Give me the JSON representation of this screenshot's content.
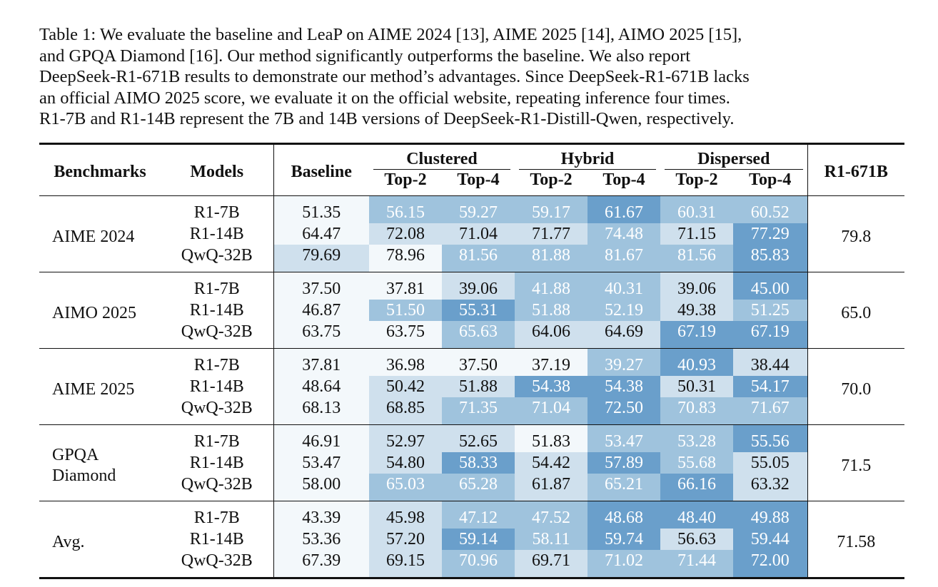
{
  "caption": {
    "lines": [
      "Table 1: We evaluate the baseline and LeaP on AIME 2024 [13], AIME 2025 [14], AIMO 2025 [15],",
      "and GPQA Diamond [16].  Our method significantly outperforms the baseline.  We also report",
      "DeepSeek-R1-671B results to demonstrate our method’s advantages. Since DeepSeek-R1-671B lacks",
      "an official AIMO 2025 score, we evaluate it on the official website, repeating inference four times.",
      "R1-7B and R1-14B represent the 7B and 14B versions of DeepSeek-R1-Distill-Qwen, respectively."
    ]
  },
  "headers": {
    "benchmarks": "Benchmarks",
    "models": "Models",
    "baseline": "Baseline",
    "groups": [
      "Clustered",
      "Hybrid",
      "Dispersed"
    ],
    "subheaders": [
      "Top-2",
      "Top-4",
      "Top-2",
      "Top-4",
      "Top-2",
      "Top-4"
    ],
    "r1_671b": "R1-671B"
  },
  "palette": {
    "shade_0": "#f3f8fb",
    "shade_1": "#cfe0ed",
    "shade_2": "#9fc3dd",
    "shade_3": "#6a9fcb"
  },
  "groups": [
    {
      "benchmark_lines": [
        "AIME 2024"
      ],
      "r1_671b": "79.8",
      "rows": [
        {
          "model": "R1-7B",
          "baseline": {
            "v": "51.35",
            "s": 0
          },
          "cells": [
            {
              "v": "56.15",
              "s": 2
            },
            {
              "v": "59.27",
              "s": 2
            },
            {
              "v": "59.17",
              "s": 2
            },
            {
              "v": "61.67",
              "s": 3
            },
            {
              "v": "60.31",
              "s": 2
            },
            {
              "v": "60.52",
              "s": 2
            }
          ]
        },
        {
          "model": "R1-14B",
          "baseline": {
            "v": "64.47",
            "s": 0
          },
          "cells": [
            {
              "v": "72.08",
              "s": 1
            },
            {
              "v": "71.04",
              "s": 1
            },
            {
              "v": "71.77",
              "s": 1
            },
            {
              "v": "74.48",
              "s": 2
            },
            {
              "v": "71.15",
              "s": 1
            },
            {
              "v": "77.29",
              "s": 3
            }
          ]
        },
        {
          "model": "QwQ-32B",
          "baseline": {
            "v": "79.69",
            "s": 1
          },
          "cells": [
            {
              "v": "78.96",
              "s": 0
            },
            {
              "v": "81.56",
              "s": 2
            },
            {
              "v": "81.88",
              "s": 2
            },
            {
              "v": "81.67",
              "s": 2
            },
            {
              "v": "81.56",
              "s": 2
            },
            {
              "v": "85.83",
              "s": 3
            }
          ]
        }
      ]
    },
    {
      "benchmark_lines": [
        "AIMO 2025"
      ],
      "r1_671b": "65.0",
      "rows": [
        {
          "model": "R1-7B",
          "baseline": {
            "v": "37.50",
            "s": 0
          },
          "cells": [
            {
              "v": "37.81",
              "s": 0
            },
            {
              "v": "39.06",
              "s": 1
            },
            {
              "v": "41.88",
              "s": 2
            },
            {
              "v": "40.31",
              "s": 2
            },
            {
              "v": "39.06",
              "s": 1
            },
            {
              "v": "45.00",
              "s": 3
            }
          ]
        },
        {
          "model": "R1-14B",
          "baseline": {
            "v": "46.87",
            "s": 0
          },
          "cells": [
            {
              "v": "51.50",
              "s": 2
            },
            {
              "v": "55.31",
              "s": 3
            },
            {
              "v": "51.88",
              "s": 2
            },
            {
              "v": "52.19",
              "s": 2
            },
            {
              "v": "49.38",
              "s": 1
            },
            {
              "v": "51.25",
              "s": 2
            }
          ]
        },
        {
          "model": "QwQ-32B",
          "baseline": {
            "v": "63.75",
            "s": 0
          },
          "cells": [
            {
              "v": "63.75",
              "s": 0
            },
            {
              "v": "65.63",
              "s": 2
            },
            {
              "v": "64.06",
              "s": 1
            },
            {
              "v": "64.69",
              "s": 1
            },
            {
              "v": "67.19",
              "s": 3
            },
            {
              "v": "67.19",
              "s": 3
            }
          ]
        }
      ]
    },
    {
      "benchmark_lines": [
        "AIME 2025"
      ],
      "r1_671b": "70.0",
      "rows": [
        {
          "model": "R1-7B",
          "baseline": {
            "v": "37.81",
            "s": 0
          },
          "cells": [
            {
              "v": "36.98",
              "s": 0
            },
            {
              "v": "37.50",
              "s": 0
            },
            {
              "v": "37.19",
              "s": 0
            },
            {
              "v": "39.27",
              "s": 2
            },
            {
              "v": "40.93",
              "s": 3
            },
            {
              "v": "38.44",
              "s": 1
            }
          ]
        },
        {
          "model": "R1-14B",
          "baseline": {
            "v": "48.64",
            "s": 0
          },
          "cells": [
            {
              "v": "50.42",
              "s": 1
            },
            {
              "v": "51.88",
              "s": 1
            },
            {
              "v": "54.38",
              "s": 3
            },
            {
              "v": "54.38",
              "s": 3
            },
            {
              "v": "50.31",
              "s": 1
            },
            {
              "v": "54.17",
              "s": 3
            }
          ]
        },
        {
          "model": "QwQ-32B",
          "baseline": {
            "v": "68.13",
            "s": 0
          },
          "cells": [
            {
              "v": "68.85",
              "s": 1
            },
            {
              "v": "71.35",
              "s": 2
            },
            {
              "v": "71.04",
              "s": 2
            },
            {
              "v": "72.50",
              "s": 3
            },
            {
              "v": "70.83",
              "s": 2
            },
            {
              "v": "71.67",
              "s": 2
            }
          ]
        }
      ]
    },
    {
      "benchmark_lines": [
        "GPQA",
        "Diamond"
      ],
      "r1_671b": "71.5",
      "rows": [
        {
          "model": "R1-7B",
          "baseline": {
            "v": "46.91",
            "s": 0
          },
          "cells": [
            {
              "v": "52.97",
              "s": 1
            },
            {
              "v": "52.65",
              "s": 1
            },
            {
              "v": "51.83",
              "s": 0
            },
            {
              "v": "53.47",
              "s": 2
            },
            {
              "v": "53.28",
              "s": 2
            },
            {
              "v": "55.56",
              "s": 3
            }
          ]
        },
        {
          "model": "R1-14B",
          "baseline": {
            "v": "53.47",
            "s": 0
          },
          "cells": [
            {
              "v": "54.80",
              "s": 1
            },
            {
              "v": "58.33",
              "s": 3
            },
            {
              "v": "54.42",
              "s": 1
            },
            {
              "v": "57.89",
              "s": 3
            },
            {
              "v": "55.68",
              "s": 2
            },
            {
              "v": "55.05",
              "s": 1
            }
          ]
        },
        {
          "model": "QwQ-32B",
          "baseline": {
            "v": "58.00",
            "s": 0
          },
          "cells": [
            {
              "v": "65.03",
              "s": 2
            },
            {
              "v": "65.28",
              "s": 2
            },
            {
              "v": "61.87",
              "s": 1
            },
            {
              "v": "65.21",
              "s": 2
            },
            {
              "v": "66.16",
              "s": 3
            },
            {
              "v": "63.32",
              "s": 1
            }
          ]
        }
      ]
    },
    {
      "benchmark_lines": [
        "Avg."
      ],
      "r1_671b": "71.58",
      "rows": [
        {
          "model": "R1-7B",
          "baseline": {
            "v": "43.39",
            "s": 0
          },
          "cells": [
            {
              "v": "45.98",
              "s": 1
            },
            {
              "v": "47.12",
              "s": 2
            },
            {
              "v": "47.52",
              "s": 2
            },
            {
              "v": "48.68",
              "s": 3
            },
            {
              "v": "48.40",
              "s": 3
            },
            {
              "v": "49.88",
              "s": 3
            }
          ]
        },
        {
          "model": "R1-14B",
          "baseline": {
            "v": "53.36",
            "s": 0
          },
          "cells": [
            {
              "v": "57.20",
              "s": 1
            },
            {
              "v": "59.14",
              "s": 3
            },
            {
              "v": "58.11",
              "s": 2
            },
            {
              "v": "59.74",
              "s": 3
            },
            {
              "v": "56.63",
              "s": 1
            },
            {
              "v": "59.44",
              "s": 3
            }
          ]
        },
        {
          "model": "QwQ-32B",
          "baseline": {
            "v": "67.39",
            "s": 0
          },
          "cells": [
            {
              "v": "69.15",
              "s": 1
            },
            {
              "v": "70.96",
              "s": 2
            },
            {
              "v": "69.71",
              "s": 1
            },
            {
              "v": "71.02",
              "s": 2
            },
            {
              "v": "71.44",
              "s": 2
            },
            {
              "v": "72.00",
              "s": 3
            }
          ]
        }
      ]
    }
  ]
}
